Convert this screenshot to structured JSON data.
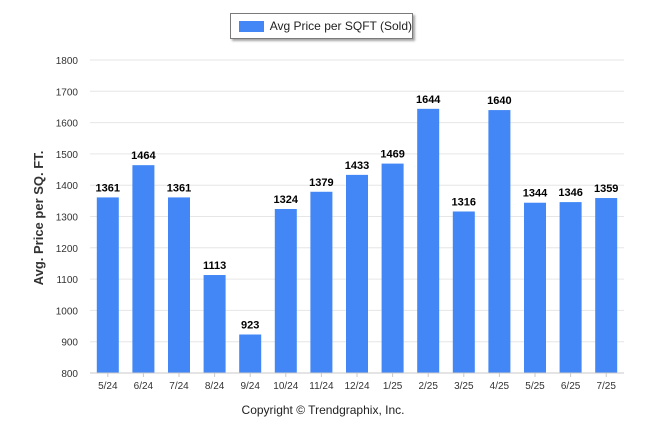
{
  "legend": {
    "label": "Avg Price per SQFT (Sold)",
    "color": "#4287f5"
  },
  "footer": {
    "copyright": "Copyright © Trendgraphix, Inc."
  },
  "chart_data": {
    "type": "bar",
    "title": "",
    "xlabel": "",
    "ylabel": "Avg. Price per SQ. FT.",
    "ylim": [
      800,
      1800
    ],
    "yticks": [
      800,
      900,
      1000,
      1100,
      1200,
      1300,
      1400,
      1500,
      1600,
      1700,
      1800
    ],
    "grid": true,
    "legend_position": "top-center",
    "bar_color": "#4287f5",
    "categories": [
      "5/24",
      "6/24",
      "7/24",
      "8/24",
      "9/24",
      "10/24",
      "11/24",
      "12/24",
      "1/25",
      "2/25",
      "3/25",
      "4/25",
      "5/25",
      "6/25",
      "7/25"
    ],
    "series": [
      {
        "name": "Avg Price per SQFT (Sold)",
        "values": [
          1361,
          1464,
          1361,
          1113,
          923,
          1324,
          1379,
          1433,
          1469,
          1644,
          1316,
          1640,
          1344,
          1346,
          1359
        ]
      }
    ]
  }
}
